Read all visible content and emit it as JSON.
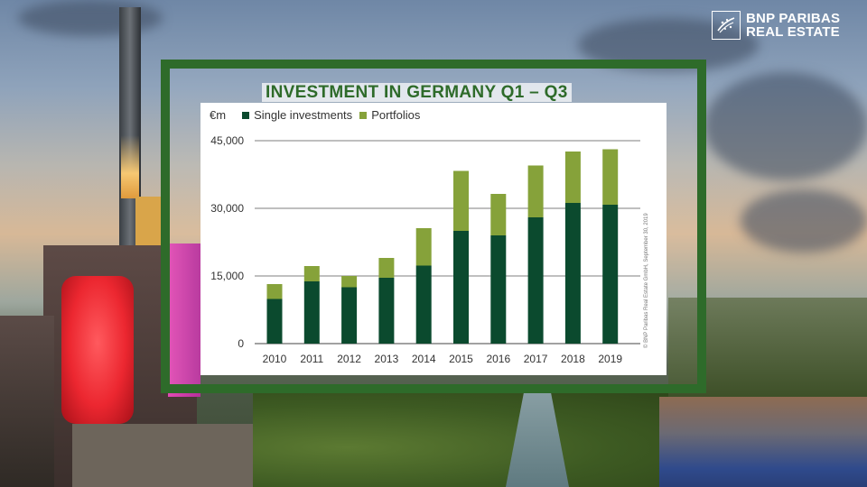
{
  "brand": {
    "line1": "BNP PARIBAS",
    "line2": "REAL ESTATE",
    "logo_icon": "bnp-stars-icon"
  },
  "colors": {
    "frame": "#2e6b2a",
    "single": "#0b4a2e",
    "portfolio": "#86a23a",
    "title": "#2e6b2a"
  },
  "chart_data": {
    "type": "bar",
    "stacked": true,
    "title": "INVESTMENT IN GERMANY Q1 – Q3",
    "ylabel": "€m",
    "ylim": [
      0,
      45000
    ],
    "yticks": [
      "0",
      "15,000",
      "30,000",
      "45,000"
    ],
    "ytick_values": [
      0,
      15000,
      30000,
      45000
    ],
    "grid": true,
    "legend_position": "top-left",
    "categories": [
      "2010",
      "2011",
      "2012",
      "2013",
      "2014",
      "2015",
      "2016",
      "2017",
      "2018",
      "2019"
    ],
    "series": [
      {
        "name": "Single investments",
        "values": [
          9900,
          13800,
          12500,
          14600,
          17300,
          25000,
          24000,
          28000,
          31200,
          30800
        ]
      },
      {
        "name": "Portfolios",
        "values": [
          3300,
          3400,
          2500,
          4400,
          8300,
          13300,
          9200,
          11500,
          11400,
          12300
        ]
      }
    ],
    "source_note": "© BNP Paribas Real Estate GmbH, September 30, 2019"
  }
}
